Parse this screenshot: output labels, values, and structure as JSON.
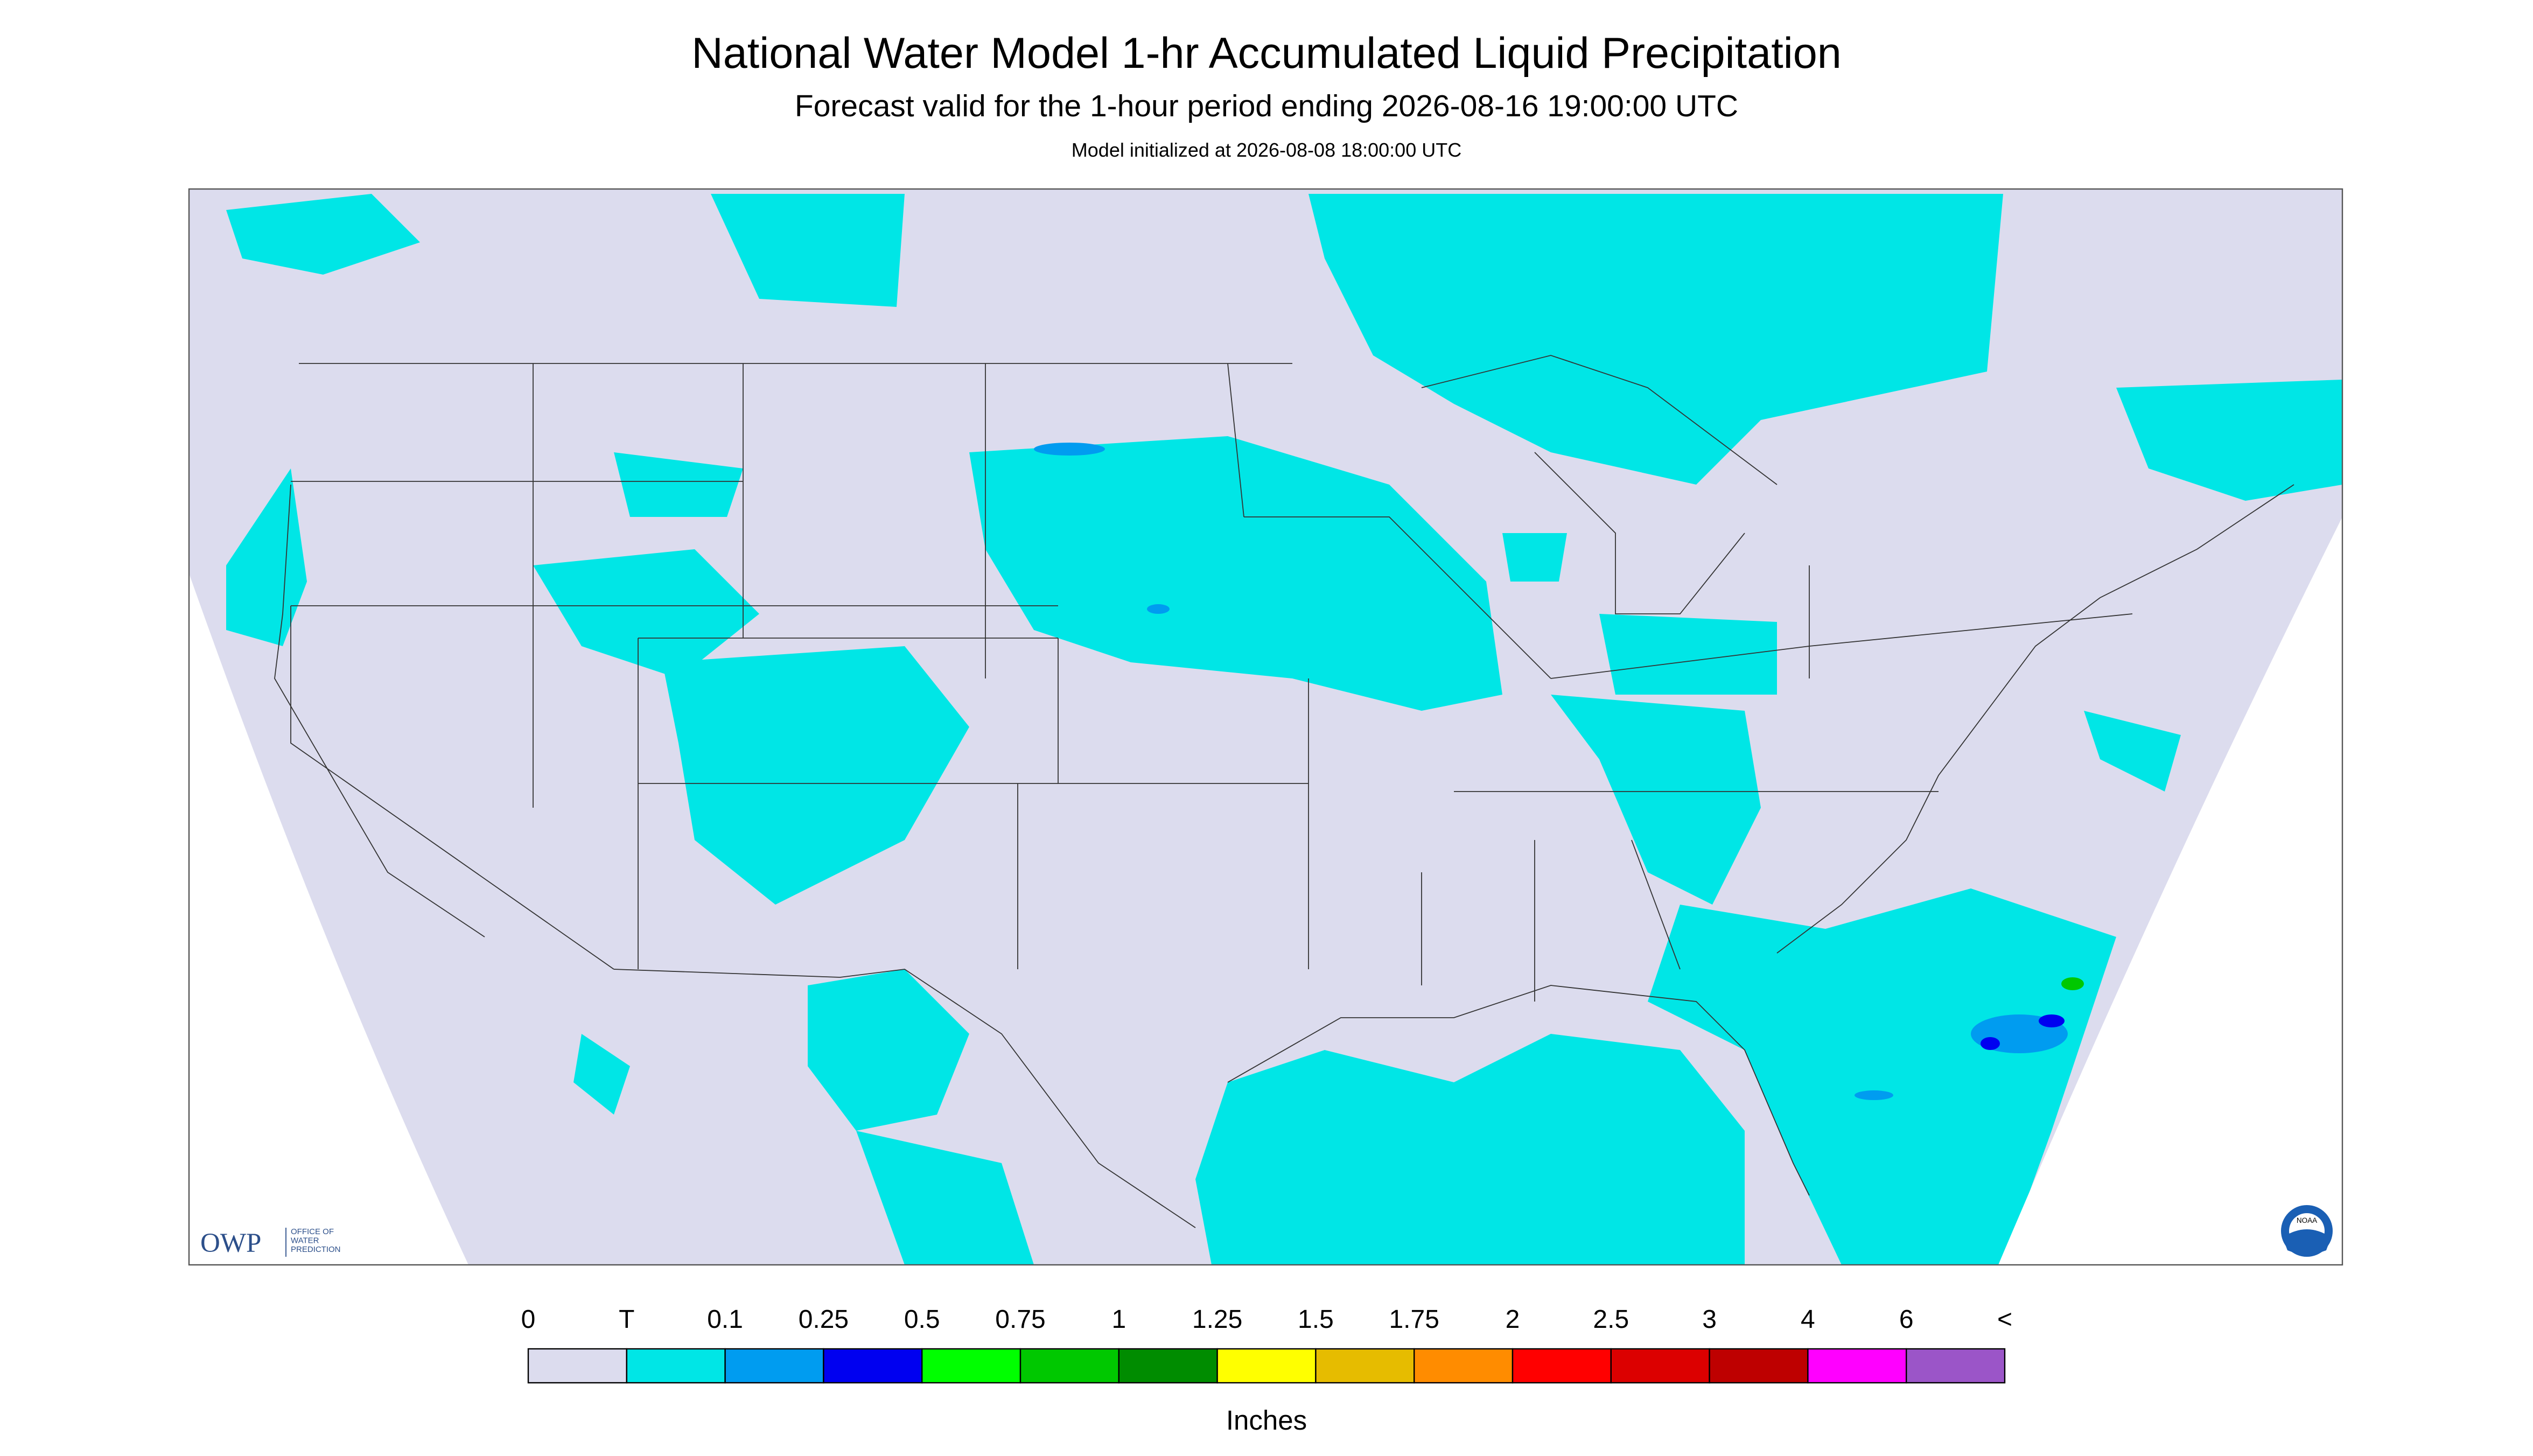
{
  "header": {
    "title": "National Water Model 1-hr Accumulated Liquid Precipitation",
    "subtitle": "Forecast valid for the 1-hour period ending 2026-08-16 19:00:00 UTC",
    "initialized": "Model initialized at 2026-08-08 18:00:00 UTC"
  },
  "legend": {
    "labels": [
      "0",
      "T",
      "0.1",
      "0.25",
      "0.5",
      "0.75",
      "1",
      "1.25",
      "1.5",
      "1.75",
      "2",
      "2.5",
      "3",
      "4",
      "6",
      "<"
    ],
    "colors": [
      "#dcdcee",
      "#00e6e6",
      "#009cf0",
      "#0000f0",
      "#00ff00",
      "#00c800",
      "#008c00",
      "#ffff00",
      "#e6bc00",
      "#ff8c00",
      "#ff0000",
      "#dc0000",
      "#be0000",
      "#ff00ff",
      "#9b55c8"
    ],
    "unit": "Inches"
  },
  "logos": {
    "owp": "OWP",
    "owp_lines": [
      "OFFICE OF",
      "WATER",
      "PREDICTION"
    ],
    "noaa": "NOAA"
  }
}
